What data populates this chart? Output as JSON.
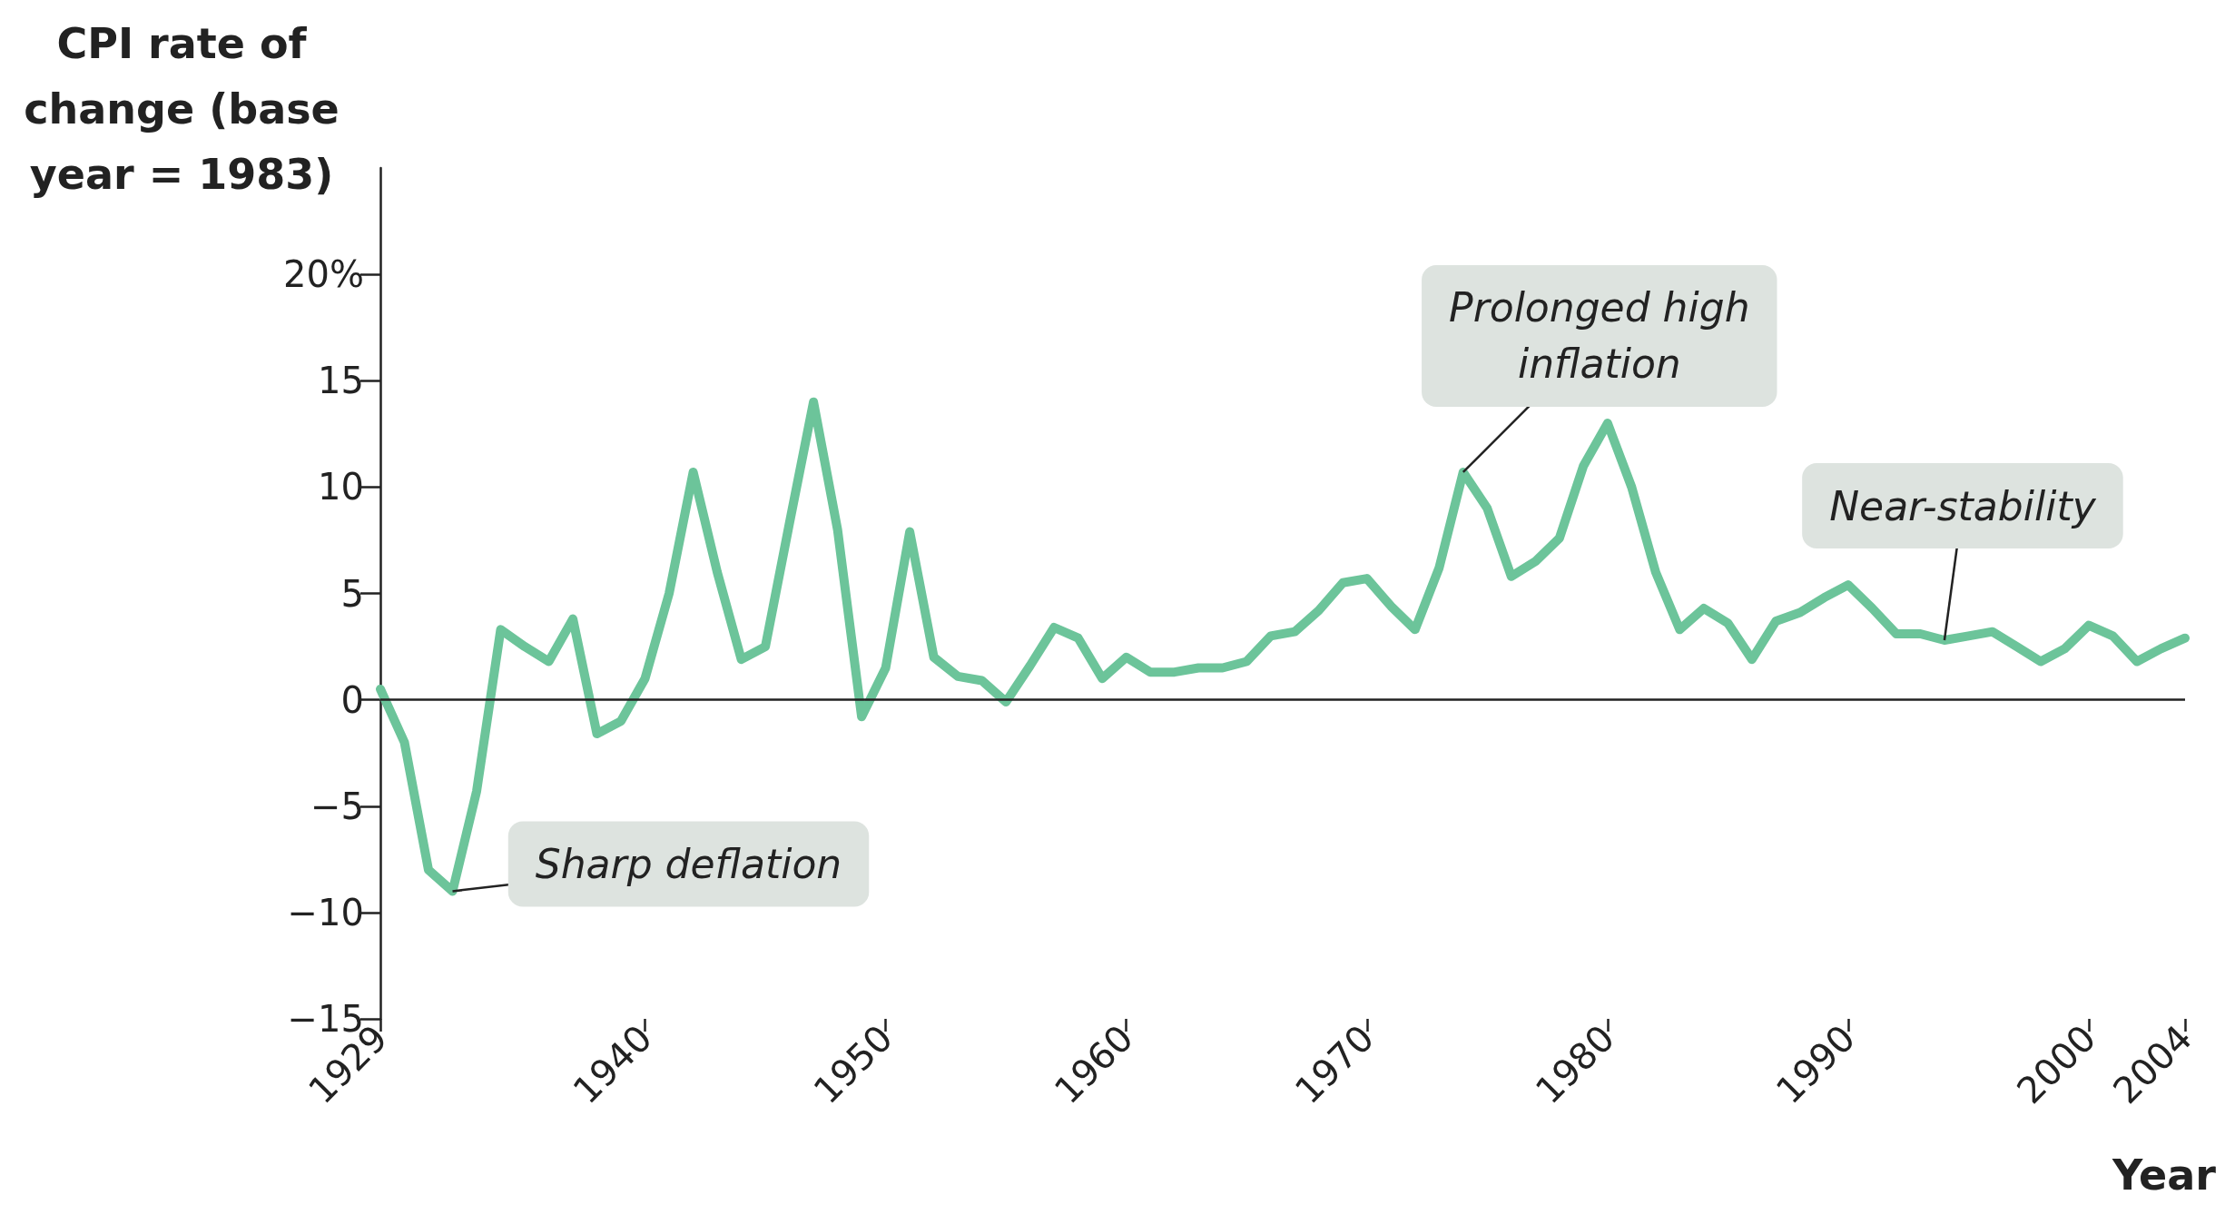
{
  "chart_data": {
    "type": "line",
    "ylabel": "CPI rate of\nchange (base\nyear = 1983)",
    "xlabel": "Year",
    "x": [
      1929,
      1930,
      1931,
      1932,
      1933,
      1934,
      1935,
      1936,
      1937,
      1938,
      1939,
      1940,
      1941,
      1942,
      1943,
      1944,
      1945,
      1946,
      1947,
      1948,
      1949,
      1950,
      1951,
      1952,
      1953,
      1954,
      1955,
      1956,
      1957,
      1958,
      1959,
      1960,
      1961,
      1962,
      1963,
      1964,
      1965,
      1966,
      1967,
      1968,
      1969,
      1970,
      1971,
      1972,
      1973,
      1974,
      1975,
      1976,
      1977,
      1978,
      1979,
      1980,
      1981,
      1982,
      1983,
      1984,
      1985,
      1986,
      1987,
      1988,
      1989,
      1990,
      1991,
      1992,
      1993,
      1994,
      1995,
      1996,
      1997,
      1998,
      1999,
      2000,
      2001,
      2002,
      2003,
      2004
    ],
    "series": [
      {
        "color": "#6cc49a",
        "values": [
          0.5,
          -2,
          -8,
          -9,
          -4.3,
          3.3,
          2.5,
          1.8,
          3.8,
          -1.6,
          -1,
          1,
          5,
          10.7,
          6,
          1.9,
          2.5,
          8.3,
          14,
          8,
          -0.8,
          1.5,
          7.9,
          2,
          1.1,
          0.9,
          -0.1,
          1.6,
          3.4,
          2.9,
          1,
          2,
          1.3,
          1.3,
          1.5,
          1.5,
          1.8,
          3,
          3.2,
          4.2,
          5.5,
          5.7,
          4.4,
          3.3,
          6.2,
          10.7,
          9,
          5.8,
          6.5,
          7.6,
          11,
          13,
          10,
          6,
          3.3,
          4.3,
          3.6,
          1.9,
          3.7,
          4.1,
          4.8,
          5.4,
          4.3,
          3.1,
          3.1,
          2.8,
          3,
          3.2,
          2.5,
          1.8,
          2.4,
          3.5,
          3,
          1.8,
          2.4,
          2.9
        ]
      }
    ],
    "xlim": [
      1929,
      2004
    ],
    "xticks": [
      1929,
      1940,
      1950,
      1960,
      1970,
      1980,
      1990,
      2000,
      2004
    ],
    "ylim": [
      -15,
      25
    ],
    "yticks": [
      {
        "value": -15,
        "label": "−15"
      },
      {
        "value": -10,
        "label": "−10"
      },
      {
        "value": -5,
        "label": "−5"
      },
      0,
      5,
      10,
      15,
      {
        "value": 20,
        "label": "20%"
      }
    ],
    "ref_lines": [
      {
        "axis": "y",
        "value": 0,
        "color": "#222222"
      }
    ],
    "annotations": [
      {
        "text": "Sharp deflation",
        "x": 1932,
        "y": -9
      },
      {
        "text": "Prolonged high\ninflation",
        "x": 1974,
        "y": 10.7
      },
      {
        "text": "Near-stability",
        "x": 1994,
        "y": 2.8
      }
    ],
    "grid": false,
    "marker": "none",
    "line_style": "solid"
  }
}
